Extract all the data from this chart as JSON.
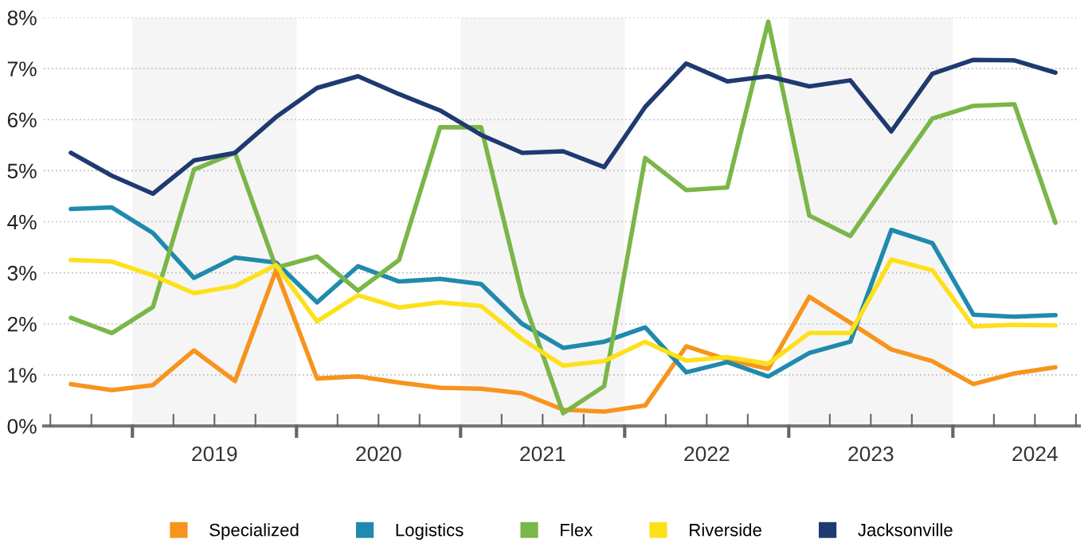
{
  "chart_data": {
    "type": "line",
    "x": [
      2018.625,
      2018.875,
      2019.125,
      2019.375,
      2019.625,
      2019.875,
      2020.125,
      2020.375,
      2020.625,
      2020.875,
      2021.125,
      2021.375,
      2021.625,
      2021.875,
      2022.125,
      2022.375,
      2022.625,
      2022.875,
      2023.125,
      2023.375,
      2023.625,
      2023.875,
      2024.125,
      2024.375,
      2024.625
    ],
    "series": [
      {
        "name": "Specialized",
        "color": "#f7941d",
        "values": [
          0.82,
          0.7,
          0.8,
          1.48,
          0.88,
          3.05,
          0.93,
          0.97,
          0.85,
          0.75,
          0.73,
          0.64,
          0.32,
          0.28,
          0.4,
          1.56,
          1.3,
          1.12,
          2.53,
          2.02,
          1.5,
          1.27,
          0.82,
          1.03,
          1.15
        ]
      },
      {
        "name": "Logistics",
        "color": "#1f8aad",
        "values": [
          4.25,
          4.28,
          3.78,
          2.9,
          3.3,
          3.2,
          2.42,
          3.13,
          2.83,
          2.88,
          2.78,
          2.0,
          1.53,
          1.65,
          1.93,
          1.05,
          1.25,
          0.97,
          1.43,
          1.65,
          3.84,
          3.58,
          2.18,
          2.14,
          2.17
        ]
      },
      {
        "name": "Flex",
        "color": "#7ab648",
        "values": [
          2.12,
          1.82,
          2.33,
          5.02,
          5.35,
          3.1,
          3.32,
          2.65,
          3.25,
          5.85,
          5.85,
          2.55,
          0.25,
          0.78,
          5.25,
          4.62,
          4.67,
          7.92,
          4.12,
          3.72,
          4.88,
          6.02,
          6.27,
          6.3,
          3.98
        ]
      },
      {
        "name": "Riverside",
        "color": "#fde01a",
        "values": [
          3.25,
          3.22,
          2.95,
          2.6,
          2.74,
          3.15,
          2.05,
          2.56,
          2.32,
          2.42,
          2.35,
          1.7,
          1.18,
          1.27,
          1.65,
          1.28,
          1.35,
          1.22,
          1.82,
          1.82,
          3.26,
          3.05,
          1.95,
          1.98,
          1.97
        ]
      },
      {
        "name": "Jacksonville",
        "color": "#1e3a70",
        "values": [
          5.35,
          4.9,
          4.55,
          5.2,
          5.35,
          6.05,
          6.62,
          6.85,
          6.5,
          6.18,
          5.7,
          5.35,
          5.38,
          5.07,
          6.25,
          7.1,
          6.75,
          6.85,
          6.65,
          6.77,
          5.77,
          6.9,
          7.17,
          7.16,
          6.92
        ]
      }
    ],
    "xlim": [
      2018.46,
      2024.77
    ],
    "xticks": [
      {
        "value": 2018.5,
        "label": null
      },
      {
        "value": 2018.75,
        "label": null
      },
      {
        "value": 2019,
        "label": null
      },
      {
        "value": 2019.25,
        "label": null
      },
      {
        "value": 2019.5,
        "label": "2019"
      },
      {
        "value": 2019.75,
        "label": null
      },
      {
        "value": 2020,
        "label": null
      },
      {
        "value": 2020.25,
        "label": null
      },
      {
        "value": 2020.5,
        "label": "2020"
      },
      {
        "value": 2020.75,
        "label": null
      },
      {
        "value": 2021,
        "label": null
      },
      {
        "value": 2021.25,
        "label": null
      },
      {
        "value": 2021.5,
        "label": "2021"
      },
      {
        "value": 2021.75,
        "label": null
      },
      {
        "value": 2022,
        "label": null
      },
      {
        "value": 2022.25,
        "label": null
      },
      {
        "value": 2022.5,
        "label": "2022"
      },
      {
        "value": 2022.75,
        "label": null
      },
      {
        "value": 2023,
        "label": null
      },
      {
        "value": 2023.25,
        "label": null
      },
      {
        "value": 2023.5,
        "label": "2023"
      },
      {
        "value": 2023.75,
        "label": null
      },
      {
        "value": 2024,
        "label": null
      },
      {
        "value": 2024.25,
        "label": null
      },
      {
        "value": 2024.5,
        "label": "2024"
      },
      {
        "value": 2024.75,
        "label": null
      }
    ],
    "ylim": [
      0,
      8
    ],
    "yticks": [
      {
        "value": 0,
        "label": "0%"
      },
      {
        "value": 1,
        "label": "1%"
      },
      {
        "value": 2,
        "label": "2%"
      },
      {
        "value": 3,
        "label": "3%"
      },
      {
        "value": 4,
        "label": "4%"
      },
      {
        "value": 5,
        "label": "5%"
      },
      {
        "value": 6,
        "label": "6%"
      },
      {
        "value": 7,
        "label": "7%"
      },
      {
        "value": 8,
        "label": "8%"
      }
    ],
    "bands": [
      {
        "axis": "x",
        "from": 2019,
        "to": 2020,
        "color": "#f5f5f5"
      },
      {
        "axis": "x",
        "from": 2021,
        "to": 2022,
        "color": "#f5f5f5"
      },
      {
        "axis": "x",
        "from": 2023,
        "to": 2024,
        "color": "#f5f5f5"
      }
    ],
    "grid": "y",
    "legend": "bottom",
    "marker": "none",
    "line_style": "solid"
  }
}
